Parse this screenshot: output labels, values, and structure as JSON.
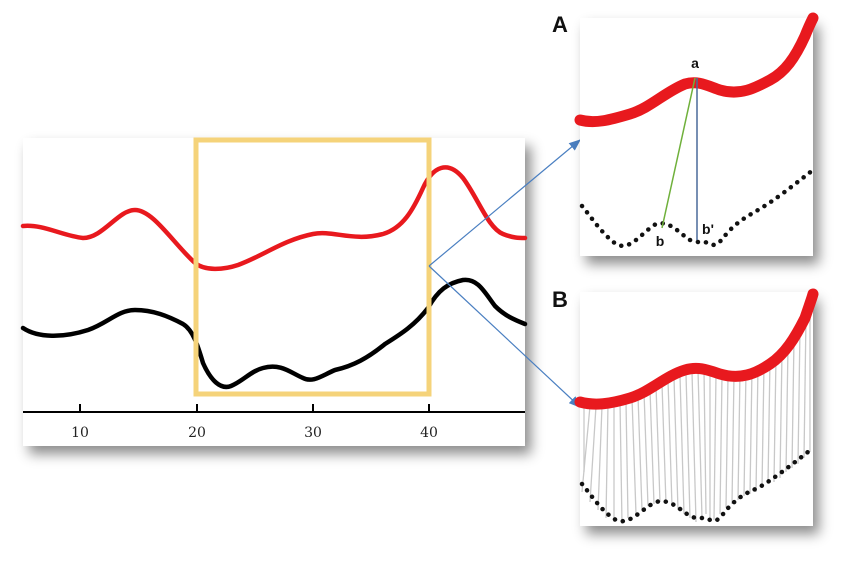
{
  "main_plot": {
    "x_ticks": [
      "10",
      "20",
      "30",
      "40"
    ],
    "highlight_color": "#f5d37a",
    "series": [
      {
        "color": "#e8191e"
      },
      {
        "color": "#000000"
      }
    ]
  },
  "panel_a": {
    "letter": "A",
    "point_labels": {
      "a": "a",
      "b": "b",
      "b_prime": "b'"
    },
    "line_colors": {
      "green": "#6fb03b",
      "blue": "#4a6a9a"
    }
  },
  "panel_b": {
    "letter": "B"
  },
  "colors": {
    "red_curve": "#e8191e",
    "black_curve": "#000000",
    "arrow": "#4a7fc1",
    "connector": "#c8c8c8"
  }
}
